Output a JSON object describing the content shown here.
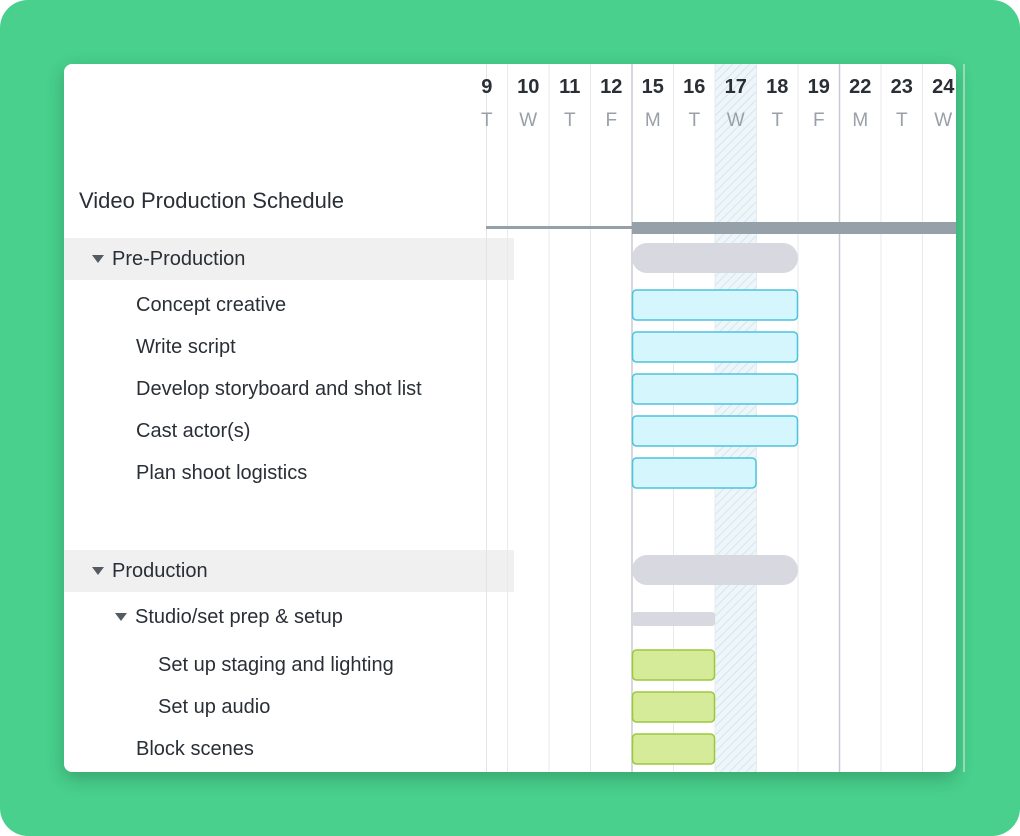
{
  "schedule": {
    "title": "Video Production Schedule"
  },
  "days": [
    {
      "num": "9",
      "letter": "T"
    },
    {
      "num": "10",
      "letter": "W"
    },
    {
      "num": "11",
      "letter": "T"
    },
    {
      "num": "12",
      "letter": "F"
    },
    {
      "num": "15",
      "letter": "M"
    },
    {
      "num": "16",
      "letter": "T"
    },
    {
      "num": "17",
      "letter": "W"
    },
    {
      "num": "18",
      "letter": "T"
    },
    {
      "num": "19",
      "letter": "F"
    },
    {
      "num": "22",
      "letter": "M"
    },
    {
      "num": "23",
      "letter": "T"
    },
    {
      "num": "24",
      "letter": "W"
    }
  ],
  "today_day": "17",
  "colors": {
    "frame": "#48d08c",
    "group_bar": "#d8d9e0",
    "pre_task_fill": "#d4f6fc",
    "pre_task_stroke": "#4cc4dc",
    "prod_task_fill": "#d6eb9a",
    "prod_task_stroke": "#9cc83c",
    "summary_line": "#96a0a8"
  },
  "tasks": [
    {
      "id": "pre-production",
      "label": "Pre-Production",
      "level": 0,
      "group": true,
      "start": "15",
      "end": "18",
      "kind": "group"
    },
    {
      "id": "concept-creative",
      "label": "Concept creative",
      "level": 1,
      "group": false,
      "start": "15",
      "end": "18",
      "kind": "pre"
    },
    {
      "id": "write-script",
      "label": "Write script",
      "level": 1,
      "group": false,
      "start": "15",
      "end": "18",
      "kind": "pre"
    },
    {
      "id": "develop-storyboard",
      "label": "Develop storyboard and shot list",
      "level": 1,
      "group": false,
      "start": "15",
      "end": "18",
      "kind": "pre"
    },
    {
      "id": "cast-actors",
      "label": "Cast actor(s)",
      "level": 1,
      "group": false,
      "start": "15",
      "end": "18",
      "kind": "pre"
    },
    {
      "id": "plan-shoot",
      "label": "Plan shoot logistics",
      "level": 1,
      "group": false,
      "start": "15",
      "end": "17",
      "kind": "pre"
    },
    {
      "id": "production",
      "label": "Production",
      "level": 0,
      "group": true,
      "start": "15",
      "end": "18",
      "kind": "group"
    },
    {
      "id": "studio-prep",
      "label": "Studio/set prep & setup",
      "level": 1,
      "group": false,
      "caret": true,
      "start": "15",
      "end": "16",
      "kind": "subgroup"
    },
    {
      "id": "staging-lighting",
      "label": "Set up staging and lighting",
      "level": 2,
      "group": false,
      "start": "15",
      "end": "16",
      "kind": "prod"
    },
    {
      "id": "setup-audio",
      "label": "Set up audio",
      "level": 2,
      "group": false,
      "start": "15",
      "end": "16",
      "kind": "prod"
    },
    {
      "id": "block-scenes",
      "label": "Block scenes",
      "level": 1,
      "group": false,
      "start": "15",
      "end": "16",
      "kind": "prod"
    }
  ]
}
